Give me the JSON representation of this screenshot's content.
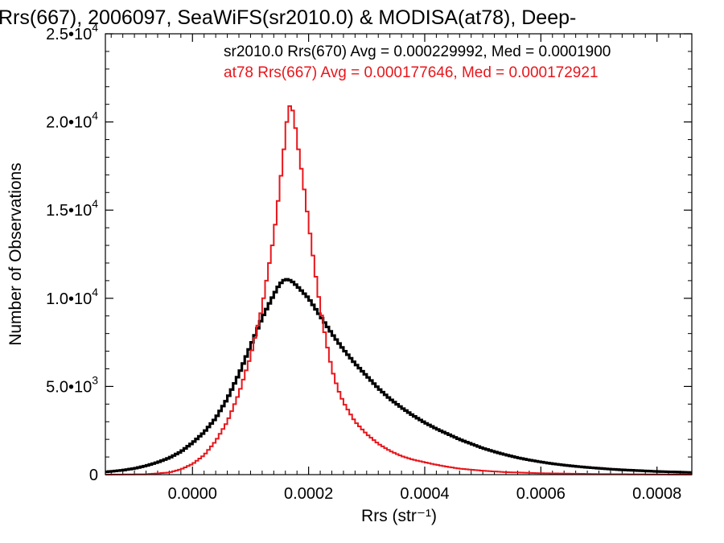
{
  "chart_data": {
    "type": "bar",
    "title": "Rrs(667), 2006097, SeaWiFS(sr2010.0) & MODISA(at78), Deep-",
    "xlabel": "Rrs (str⁻¹)",
    "ylabel": "Number of Observations",
    "xlim": [
      -0.00015,
      0.00086
    ],
    "ylim": [
      0,
      25000
    ],
    "x_ticks": [
      {
        "value": 0.0,
        "label": "0.0000"
      },
      {
        "value": 0.0002,
        "label": "0.0002"
      },
      {
        "value": 0.0004,
        "label": "0.0004"
      },
      {
        "value": 0.0006,
        "label": "0.0006"
      },
      {
        "value": 0.0008,
        "label": "0.0008"
      }
    ],
    "y_ticks": [
      {
        "value": 0,
        "mant": "0",
        "exp": ""
      },
      {
        "value": 5000,
        "mant": "5.0•10",
        "exp": "3"
      },
      {
        "value": 10000,
        "mant": "1.0•10",
        "exp": "4"
      },
      {
        "value": 15000,
        "mant": "1.5•10",
        "exp": "4"
      },
      {
        "value": 20000,
        "mant": "2.0•10",
        "exp": "4"
      },
      {
        "value": 25000,
        "mant": "2.5•10",
        "exp": "4"
      }
    ],
    "annotations": [
      {
        "text": "sr2010.0 Rrs(670) Avg = 0.000229992, Med = 0.0001900",
        "color": "#000000"
      },
      {
        "text": "at78 Rrs(667) Avg = 0.000177646, Med = 0.000172921",
        "color": "#e8161b"
      }
    ],
    "series": [
      {
        "color": "#000000",
        "style": "histogram-bold",
        "points": [
          [
            -0.00015,
            150
          ],
          [
            -0.00012,
            250
          ],
          [
            -0.0001,
            350
          ],
          [
            -8e-05,
            500
          ],
          [
            -6e-05,
            700
          ],
          [
            -4e-05,
            950
          ],
          [
            -2e-05,
            1300
          ],
          [
            0.0,
            1800
          ],
          [
            2e-05,
            2400
          ],
          [
            4e-05,
            3200
          ],
          [
            6e-05,
            4300
          ],
          [
            8e-05,
            5700
          ],
          [
            0.0001,
            7300
          ],
          [
            0.00012,
            8900
          ],
          [
            0.00014,
            10200
          ],
          [
            0.00015,
            10800
          ],
          [
            0.00016,
            11100
          ],
          [
            0.00017,
            11000
          ],
          [
            0.00018,
            10700
          ],
          [
            0.0002,
            10000
          ],
          [
            0.00022,
            9000
          ],
          [
            0.00024,
            8000
          ],
          [
            0.00026,
            7100
          ],
          [
            0.00028,
            6300
          ],
          [
            0.0003,
            5600
          ],
          [
            0.00032,
            4900
          ],
          [
            0.00034,
            4300
          ],
          [
            0.00036,
            3800
          ],
          [
            0.00038,
            3350
          ],
          [
            0.0004,
            2950
          ],
          [
            0.00042,
            2600
          ],
          [
            0.00044,
            2300
          ],
          [
            0.00046,
            2000
          ],
          [
            0.00048,
            1750
          ],
          [
            0.0005,
            1500
          ],
          [
            0.00052,
            1300
          ],
          [
            0.00054,
            1120
          ],
          [
            0.00056,
            960
          ],
          [
            0.00058,
            830
          ],
          [
            0.0006,
            720
          ],
          [
            0.00062,
            620
          ],
          [
            0.00064,
            540
          ],
          [
            0.00066,
            470
          ],
          [
            0.00068,
            410
          ],
          [
            0.0007,
            360
          ],
          [
            0.00072,
            310
          ],
          [
            0.00074,
            270
          ],
          [
            0.00076,
            240
          ],
          [
            0.00078,
            210
          ],
          [
            0.0008,
            180
          ],
          [
            0.00082,
            160
          ],
          [
            0.00084,
            140
          ],
          [
            0.00086,
            120
          ]
        ]
      },
      {
        "color": "#e8161b",
        "style": "histogram",
        "points": [
          [
            -0.00015,
            0
          ],
          [
            -8e-05,
            20
          ],
          [
            -4e-05,
            120
          ],
          [
            -2e-05,
            300
          ],
          [
            0.0,
            600
          ],
          [
            2e-05,
            1100
          ],
          [
            4e-05,
            1900
          ],
          [
            6e-05,
            3000
          ],
          [
            8e-05,
            4600
          ],
          [
            0.0001,
            6700
          ],
          [
            0.00012,
            9500
          ],
          [
            0.00014,
            13500
          ],
          [
            0.00015,
            16200
          ],
          [
            0.00016,
            19200
          ],
          [
            0.000165,
            20800
          ],
          [
            0.00017,
            21000
          ],
          [
            0.000175,
            20300
          ],
          [
            0.00018,
            19000
          ],
          [
            0.00019,
            16800
          ],
          [
            0.0002,
            14300
          ],
          [
            0.00021,
            11800
          ],
          [
            0.00022,
            9500
          ],
          [
            0.00023,
            7600
          ],
          [
            0.00024,
            6000
          ],
          [
            0.00025,
            4900
          ],
          [
            0.00026,
            4100
          ],
          [
            0.00028,
            3000
          ],
          [
            0.0003,
            2300
          ],
          [
            0.00032,
            1750
          ],
          [
            0.00034,
            1350
          ],
          [
            0.00036,
            1050
          ],
          [
            0.00038,
            850
          ],
          [
            0.0004,
            700
          ],
          [
            0.00042,
            560
          ],
          [
            0.00044,
            440
          ],
          [
            0.00046,
            340
          ],
          [
            0.0005,
            220
          ],
          [
            0.00054,
            140
          ],
          [
            0.0006,
            80
          ],
          [
            0.0007,
            30
          ],
          [
            0.0008,
            10
          ],
          [
            0.00086,
            5
          ]
        ]
      }
    ]
  }
}
